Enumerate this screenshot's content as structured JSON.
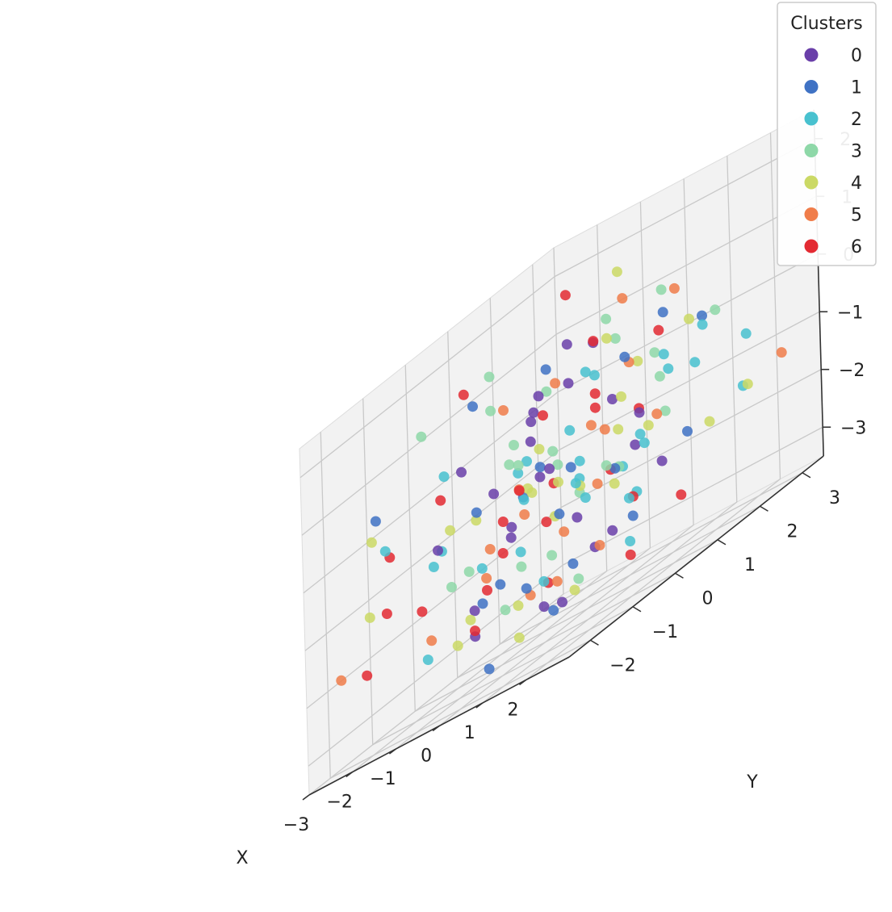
{
  "chart_data": {
    "type": "scatter",
    "projection": "3d",
    "title": "",
    "xlabel": "X",
    "ylabel": "Y",
    "zlabel": "",
    "xlim": [
      -3,
      3
    ],
    "ylim": [
      -2.5,
      3.5
    ],
    "zlim": [
      -3.5,
      2.5
    ],
    "x_ticks": [
      "−3",
      "−2",
      "−1",
      "0",
      "1",
      "2"
    ],
    "y_ticks": [
      "−2",
      "−1",
      "0",
      "1",
      "2",
      "3"
    ],
    "z_ticks": [
      "−3",
      "−2",
      "−1",
      "0",
      "1",
      "2"
    ],
    "grid": true,
    "legend": {
      "title": "Clusters",
      "placement": "top-right"
    },
    "series": [
      {
        "name": "0",
        "color": "#6a3fa9",
        "points": [
          [
            -0.3,
            1.0,
            1.2
          ],
          [
            0.1,
            0.6,
            0.6
          ],
          [
            -0.5,
            0.3,
            0.0
          ],
          [
            0.6,
            -0.4,
            -0.5
          ],
          [
            -0.9,
            0.9,
            -0.8
          ],
          [
            0.4,
            1.3,
            -0.2
          ],
          [
            -1.2,
            0.5,
            -1.5
          ],
          [
            1.1,
            -0.3,
            -1.6
          ],
          [
            0.0,
            -0.7,
            -1.1
          ],
          [
            -0.4,
            -1.2,
            -2.1
          ],
          [
            0.8,
            0.4,
            -2.4
          ],
          [
            1.4,
            0.9,
            -0.6
          ],
          [
            -1.6,
            -0.2,
            0.2
          ],
          [
            0.3,
            1.9,
            -1.3
          ],
          [
            -0.7,
            -0.9,
            -2.6
          ],
          [
            1.6,
            0.0,
            -2.2
          ],
          [
            0.5,
            -1.6,
            -0.2
          ],
          [
            -0.2,
            1.5,
            0.9
          ],
          [
            1.0,
            1.8,
            -1.8
          ],
          [
            -1.0,
            -1.4,
            -0.7
          ],
          [
            0.9,
            -1.1,
            0.6
          ],
          [
            -0.1,
            0.1,
            -2.9
          ],
          [
            1.3,
            -0.9,
            -2.8
          ],
          [
            0.2,
            -0.2,
            0.8
          ],
          [
            -1.3,
            1.2,
            0.3
          ]
        ]
      },
      {
        "name": "1",
        "color": "#3f72c4",
        "points": [
          [
            -2.2,
            -1.6,
            0.4
          ],
          [
            -0.2,
            0.2,
            -0.5
          ],
          [
            0.4,
            0.3,
            -0.8
          ],
          [
            1.2,
            0.8,
            0.5
          ],
          [
            -1.0,
            -0.4,
            -2.2
          ],
          [
            0.2,
            -0.6,
            -2.3
          ],
          [
            -0.6,
            0.8,
            1.0
          ],
          [
            1.9,
            1.9,
            0.3
          ],
          [
            0.7,
            1.4,
            -2.4
          ],
          [
            -0.5,
            -0.8,
            -3.3
          ],
          [
            1.2,
            2.2,
            -1.6
          ],
          [
            0.1,
            -1.1,
            -1.9
          ],
          [
            -1.4,
            -0.1,
            1.2
          ],
          [
            0.6,
            -0.2,
            -1.4
          ],
          [
            -0.8,
            0.4,
            -0.9
          ],
          [
            2.0,
            0.9,
            0.9
          ],
          [
            0.9,
            -0.7,
            -2.9
          ],
          [
            -0.3,
            1.0,
            -2.6
          ],
          [
            1.5,
            0.2,
            -1.2
          ],
          [
            -0.1,
            -1.4,
            -0.4
          ]
        ]
      },
      {
        "name": "2",
        "color": "#48c1cf",
        "points": [
          [
            -2.0,
            -1.6,
            -0.2
          ],
          [
            -1.7,
            -0.6,
            -0.9
          ],
          [
            -1.9,
            -0.3,
            0.3
          ],
          [
            -0.6,
            0.3,
            -0.3
          ],
          [
            0.3,
            0.8,
            0.6
          ],
          [
            1.0,
            -0.1,
            -0.7
          ],
          [
            1.6,
            1.3,
            0.1
          ],
          [
            2.2,
            1.6,
            0.2
          ],
          [
            2.4,
            2.4,
            -0.5
          ],
          [
            -0.5,
            -0.9,
            -1.5
          ],
          [
            0.6,
            0.2,
            -1.1
          ],
          [
            1.3,
            1.1,
            -1.2
          ],
          [
            -1.2,
            0.7,
            -0.5
          ],
          [
            0.0,
            -0.4,
            -0.8
          ],
          [
            0.8,
            -0.8,
            -2.3
          ],
          [
            1.8,
            0.5,
            -0.9
          ],
          [
            -0.9,
            -1.8,
            -2.4
          ],
          [
            2.0,
            0.0,
            -1.8
          ],
          [
            0.3,
            1.6,
            -1.5
          ],
          [
            1.1,
            1.9,
            -0.3
          ],
          [
            -0.3,
            -0.2,
            -1.7
          ],
          [
            0.7,
            0.6,
            0.5
          ],
          [
            1.5,
            -0.5,
            -1.3
          ],
          [
            2.1,
            2.6,
            -1.4
          ],
          [
            -1.4,
            -1.1,
            -1.0
          ],
          [
            0.9,
            1.3,
            -2.0
          ],
          [
            0.2,
            0.5,
            -0.2
          ],
          [
            -0.1,
            1.0,
            -1.2
          ],
          [
            1.7,
            0.3,
            -2.6
          ],
          [
            2.4,
            1.2,
            -0.3
          ]
        ]
      },
      {
        "name": "3",
        "color": "#8ed8a8",
        "points": [
          [
            -1.3,
            0.2,
            1.5
          ],
          [
            -0.8,
            -0.3,
            1.0
          ],
          [
            0.4,
            2.5,
            1.0
          ],
          [
            1.0,
            0.8,
            0.9
          ],
          [
            0.7,
            0.9,
            1.3
          ],
          [
            -0.3,
            -0.2,
            -0.2
          ],
          [
            -1.8,
            -0.9,
            1.3
          ],
          [
            0.2,
            -0.8,
            0.3
          ],
          [
            1.2,
            1.6,
            -0.3
          ],
          [
            -0.6,
            -1.1,
            -1.4
          ],
          [
            0.0,
            -0.5,
            -1.9
          ],
          [
            0.9,
            -0.1,
            -2.7
          ],
          [
            -1.0,
            0.3,
            -0.2
          ],
          [
            1.5,
            1.4,
            -0.9
          ],
          [
            0.3,
            0.1,
            -0.6
          ],
          [
            -0.2,
            0.5,
            -0.4
          ],
          [
            0.6,
            -0.4,
            -2.0
          ],
          [
            -0.4,
            1.3,
            -1.5
          ],
          [
            1.1,
            0.7,
            -1.3
          ],
          [
            0.8,
            1.9,
            0.1
          ],
          [
            -1.5,
            -0.6,
            -1.6
          ],
          [
            2.3,
            1.8,
            0.3
          ],
          [
            0.1,
            -1.0,
            -2.4
          ],
          [
            -0.7,
            0.9,
            0.6
          ],
          [
            1.7,
            -0.2,
            -1.0
          ]
        ]
      },
      {
        "name": "4",
        "color": "#cbd965",
        "points": [
          [
            -2.7,
            -1.2,
            0.0
          ],
          [
            -0.1,
            2.0,
            1.8
          ],
          [
            -1.9,
            -2.1,
            -1.1
          ],
          [
            0.9,
            0.7,
            1.0
          ],
          [
            -1.0,
            -0.5,
            -0.7
          ],
          [
            0.3,
            0.1,
            -0.9
          ],
          [
            2.8,
            2.0,
            -1.3
          ],
          [
            -1.1,
            -0.9,
            -2.6
          ],
          [
            0.5,
            -0.2,
            -1.4
          ],
          [
            1.4,
            0.4,
            -0.6
          ],
          [
            -0.4,
            -1.3,
            -2.2
          ],
          [
            0.8,
            1.1,
            -0.2
          ],
          [
            -0.6,
            0.4,
            -0.9
          ],
          [
            1.8,
            1.7,
            0.4
          ],
          [
            0.1,
            -0.7,
            -2.5
          ],
          [
            -0.2,
            -0.1,
            -0.7
          ],
          [
            2.4,
            1.5,
            -1.5
          ],
          [
            0.6,
            0.3,
            -1.2
          ],
          [
            1.1,
            -0.4,
            -2.8
          ],
          [
            -0.8,
            0.8,
            -0.3
          ],
          [
            0.2,
            1.5,
            -1.7
          ],
          [
            1.6,
            0.9,
            -0.9
          ],
          [
            -1.4,
            -0.7,
            -0.6
          ],
          [
            0.4,
            -1.0,
            -3.0
          ],
          [
            0.9,
            1.4,
            0.2
          ]
        ]
      },
      {
        "name": "5",
        "color": "#f07d4a",
        "points": [
          [
            0.0,
            2.0,
            1.3
          ],
          [
            0.7,
            2.5,
            0.9
          ],
          [
            -1.0,
            0.2,
            0.8
          ],
          [
            -0.3,
            0.7,
            0.7
          ],
          [
            0.9,
            1.2,
            0.3
          ],
          [
            -1.3,
            -1.3,
            -2.2
          ],
          [
            2.9,
            2.7,
            -1.2
          ],
          [
            -2.0,
            -2.7,
            -1.8
          ],
          [
            0.4,
            0.1,
            -1.8
          ],
          [
            1.0,
            0.5,
            -0.5
          ],
          [
            -0.6,
            -0.6,
            -1.3
          ],
          [
            1.5,
            -0.2,
            -2.3
          ],
          [
            0.2,
            1.0,
            -0.4
          ],
          [
            -0.9,
            -0.4,
            -1.8
          ],
          [
            1.2,
            -0.9,
            -2.4
          ],
          [
            0.6,
            0.7,
            -1.4
          ],
          [
            -0.2,
            -0.3,
            -0.6
          ],
          [
            1.7,
            1.0,
            -0.8
          ],
          [
            -0.5,
            0.2,
            -2.6
          ],
          [
            0.3,
            -0.7,
            -1.0
          ]
        ]
      },
      {
        "name": "6",
        "color": "#e32a32",
        "points": [
          [
            -0.6,
            1.3,
            2.0
          ],
          [
            -1.5,
            -0.2,
            1.5
          ],
          [
            0.2,
            1.1,
            1.0
          ],
          [
            -0.4,
            0.5,
            0.3
          ],
          [
            0.5,
            0.8,
            -0.1
          ],
          [
            -2.2,
            -1.3,
            -0.4
          ],
          [
            -1.6,
            -0.7,
            0.0
          ],
          [
            1.2,
            1.6,
            0.5
          ],
          [
            0.8,
            0.5,
            0.2
          ],
          [
            -0.1,
            -0.4,
            -0.6
          ],
          [
            -2.1,
            -1.5,
            -1.3
          ],
          [
            -1.4,
            -1.4,
            -1.6
          ],
          [
            -2.2,
            -1.9,
            -2.1
          ],
          [
            0.4,
            -0.3,
            -1.4
          ],
          [
            -0.7,
            -0.9,
            -2.5
          ],
          [
            1.6,
            0.5,
            -1.9
          ],
          [
            0.7,
            -0.6,
            -2.4
          ],
          [
            2.2,
            1.0,
            -2.4
          ],
          [
            1.3,
            0.3,
            -1.2
          ],
          [
            0.1,
            0.2,
            -0.9
          ],
          [
            -0.9,
            0.0,
            -1.6
          ],
          [
            1.9,
            0.1,
            -2.8
          ],
          [
            0.5,
            -1.4,
            -0.8
          ],
          [
            -0.3,
            -1.0,
            -1.9
          ],
          [
            1.0,
            1.3,
            -0.6
          ]
        ]
      }
    ]
  }
}
